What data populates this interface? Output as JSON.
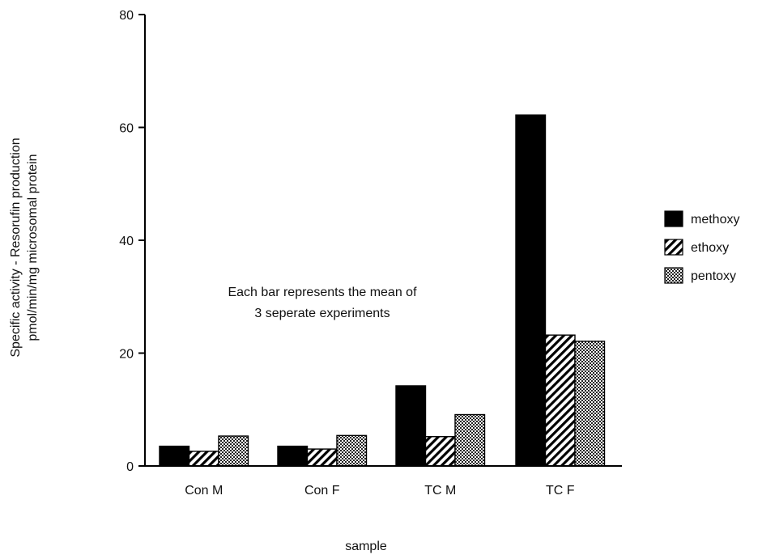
{
  "chart_data": {
    "type": "bar",
    "title": "",
    "xlabel": "sample",
    "ylabel_line1": "Specific activity  -  Resorufin production",
    "ylabel_line2": "pmol/min/mg microsomal protein",
    "categories": [
      "Con M",
      "Con F",
      "TC M",
      "TC F"
    ],
    "series": [
      {
        "name": "methoxy",
        "pattern": "solid",
        "values": [
          3.5,
          3.5,
          14.2,
          62.2
        ]
      },
      {
        "name": "ethoxy",
        "pattern": "hatch",
        "values": [
          2.6,
          3.0,
          5.2,
          23.2
        ]
      },
      {
        "name": "pentoxy",
        "pattern": "dots",
        "values": [
          5.3,
          5.4,
          9.1,
          22.1
        ]
      }
    ],
    "ylim": [
      0,
      80
    ],
    "yticks": [
      0,
      20,
      40,
      60,
      80
    ],
    "grid": false,
    "legend_position": "right",
    "annotation_line1": "Each bar represents the mean of",
    "annotation_line2": "3 seperate experiments",
    "colors": {
      "bar_fill": "#000000",
      "axis": "#000000",
      "background": "#ffffff"
    }
  }
}
